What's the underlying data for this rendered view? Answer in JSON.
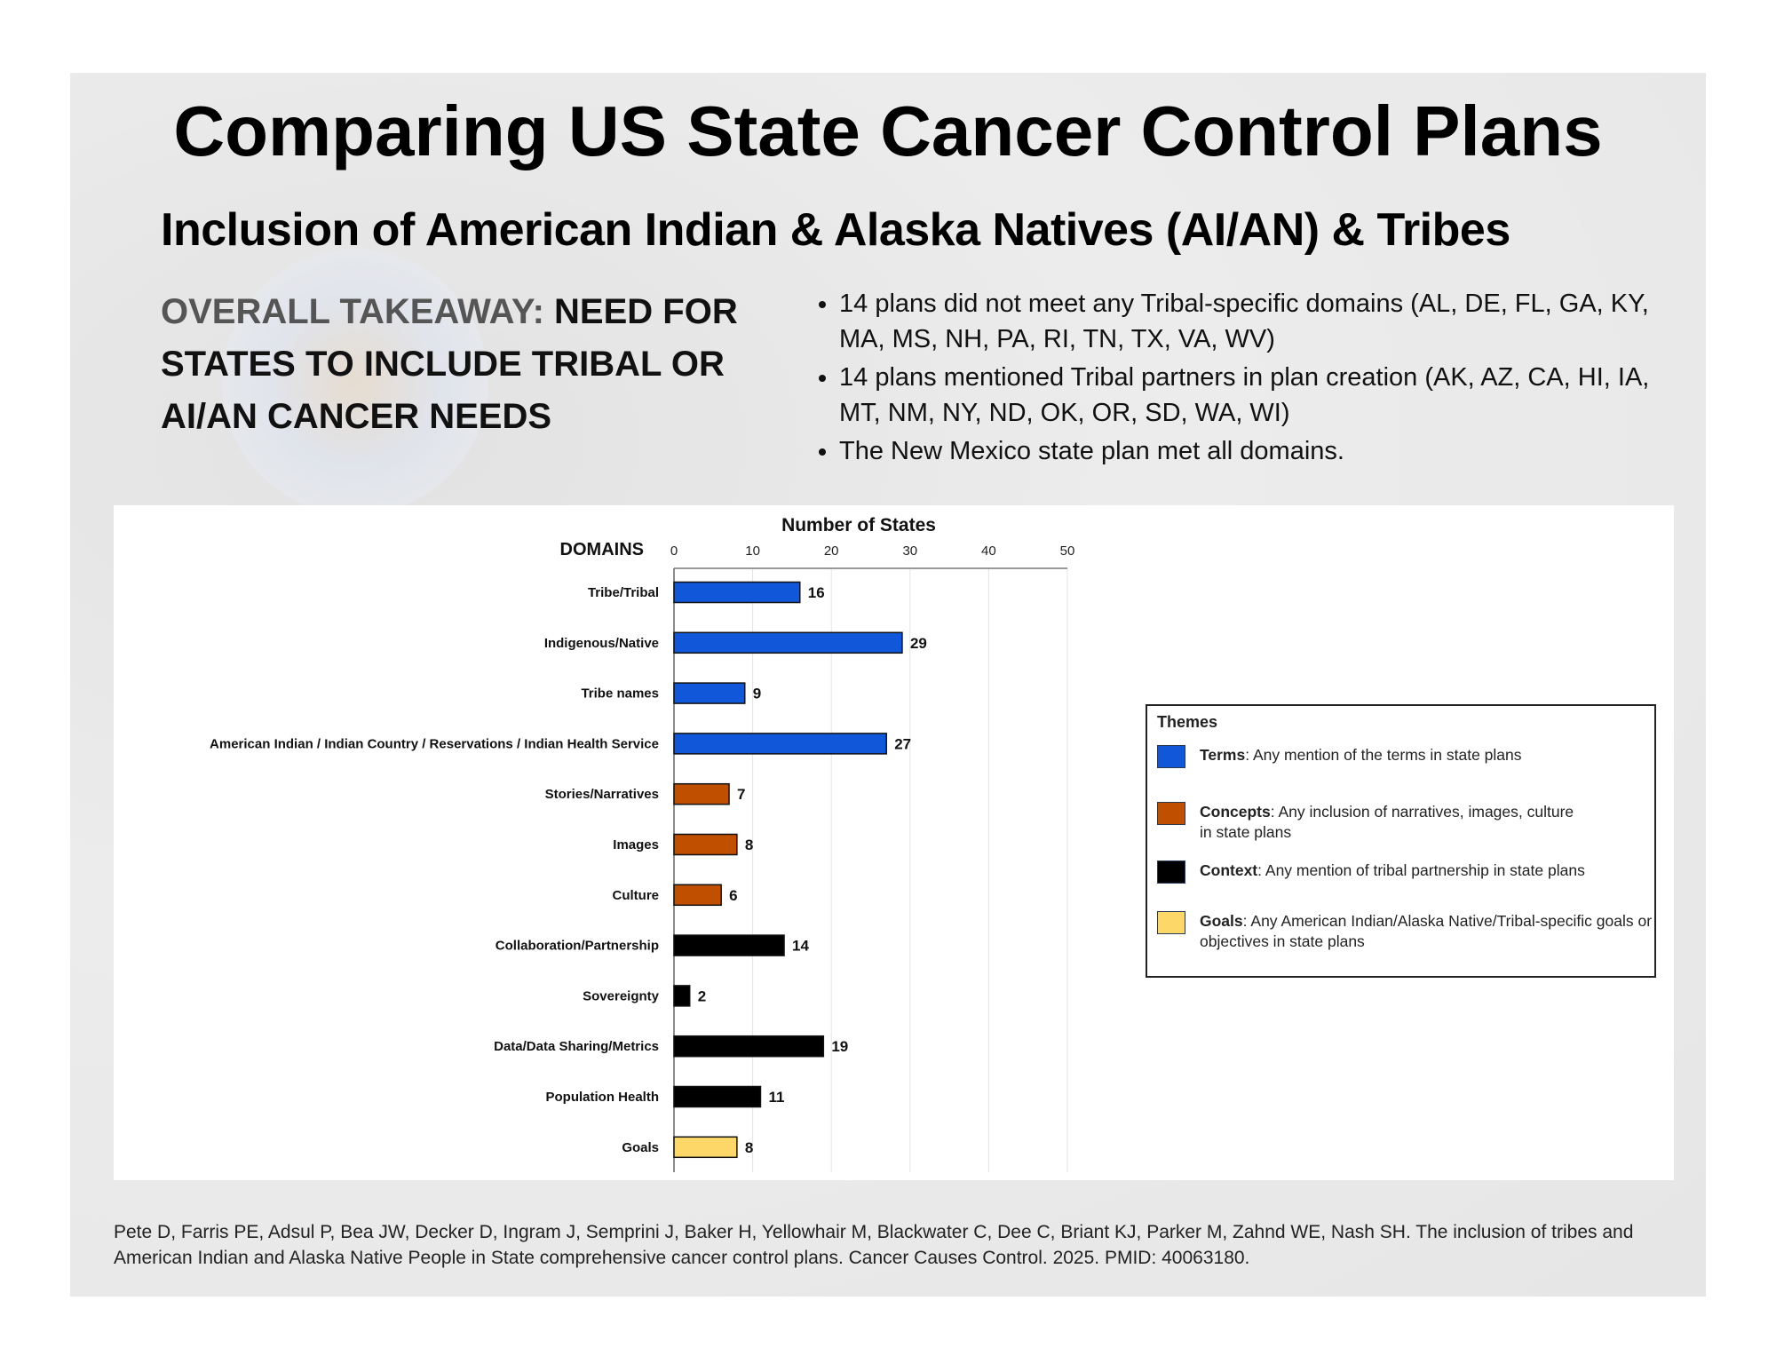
{
  "title": "Comparing US State Cancer Control Plans",
  "subtitle": "Inclusion of American Indian & Alaska Natives (AI/AN) & Tribes",
  "takeaway": {
    "lead": "OVERALL TAKEAWAY:",
    "text": "NEED FOR STATES TO INCLUDE TRIBAL OR AI/AN CANCER NEEDS"
  },
  "bullets": [
    "14 plans did not meet any Tribal-specific domains (AL, DE, FL, GA, KY, MA, MS, NH, PA, RI, TN, TX, VA, WV)",
    "14 plans mentioned Tribal partners in plan creation (AK, AZ, CA, HI, IA, MT, NM, NY, ND, OK, OR, SD, WA, WI)",
    "The New Mexico state plan met all domains."
  ],
  "chart_data": {
    "type": "bar",
    "orientation": "horizontal",
    "title": "Number of States",
    "ylabel": "DOMAINS",
    "xlim": [
      0,
      50
    ],
    "xticks": [
      0,
      10,
      20,
      30,
      40,
      50
    ],
    "grid": true,
    "legend_position": "right",
    "categories": [
      "Tribe/Tribal",
      "Indigenous/Native",
      "Tribe names",
      "American Indian / Indian Country / Reservations / Indian Health Service",
      "Stories/Narratives",
      "Images",
      "Culture",
      "Collaboration/Partnership",
      "Sovereignty",
      "Data/Data Sharing/Metrics",
      "Population Health",
      "Goals"
    ],
    "values": [
      16,
      29,
      9,
      27,
      7,
      8,
      6,
      14,
      2,
      19,
      11,
      8
    ],
    "themes": [
      "Terms",
      "Terms",
      "Terms",
      "Terms",
      "Concepts",
      "Concepts",
      "Concepts",
      "Context",
      "Context",
      "Context",
      "Context",
      "Goals"
    ],
    "colors": {
      "Terms": "#1058d9",
      "Concepts": "#c05000",
      "Context": "#000000",
      "Goals": "#fdd868"
    }
  },
  "legend": {
    "title": "Themes",
    "items": [
      {
        "name": "Terms",
        "desc": ": Any mention of the terms in state plans"
      },
      {
        "name": "Concepts",
        "desc": ": Any inclusion of narratives, images, culture in state plans"
      },
      {
        "name": "Context",
        "desc": ": Any mention of tribal partnership in state plans"
      },
      {
        "name": "Goals",
        "desc": ": Any American Indian/Alaska Native/Tribal-specific goals or objectives in state plans"
      }
    ]
  },
  "citation": "Pete D, Farris PE, Adsul P, Bea JW, Decker D, Ingram J, Semprini J, Baker H, Yellowhair M, Blackwater C, Dee C, Briant KJ, Parker M, Zahnd WE, Nash SH. The inclusion of tribes and American Indian and Alaska Native People in State comprehensive cancer control plans. Cancer Causes Control. 2025. PMID: 40063180."
}
